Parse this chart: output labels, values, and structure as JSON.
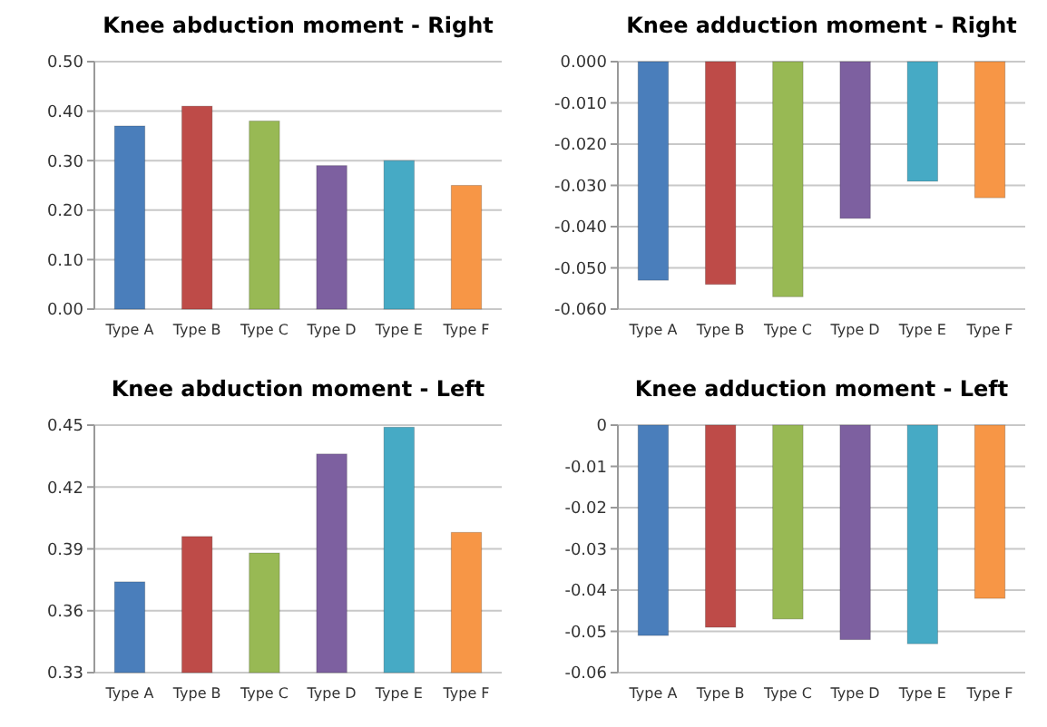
{
  "chart_data": [
    {
      "type": "bar",
      "title": "Knee abduction moment - Right",
      "categories": [
        "Type A",
        "Type B",
        "Type C",
        "Type D",
        "Type E",
        "Type F"
      ],
      "values": [
        0.37,
        0.41,
        0.38,
        0.29,
        0.3,
        0.25
      ],
      "colors": [
        "#4a7ebb",
        "#be4b48",
        "#98b954",
        "#7d60a0",
        "#46aac5",
        "#f79646"
      ],
      "ylim": [
        0,
        0.5
      ],
      "yticks": [
        {
          "value": 0,
          "label": "0.00"
        },
        {
          "value": 0.1,
          "label": "0.10"
        },
        {
          "value": 0.2,
          "label": "0.20"
        },
        {
          "value": 0.3,
          "label": "0.30"
        },
        {
          "value": 0.4,
          "label": "0.40"
        },
        {
          "value": 0.5,
          "label": "0.50"
        }
      ],
      "grid": "y"
    },
    {
      "type": "bar",
      "title": "Knee adduction moment - Right",
      "categories": [
        "Type A",
        "Type B",
        "Type C",
        "Type D",
        "Type E",
        "Type F"
      ],
      "values": [
        -0.053,
        -0.054,
        -0.057,
        -0.038,
        -0.029,
        -0.033
      ],
      "colors": [
        "#4a7ebb",
        "#be4b48",
        "#98b954",
        "#7d60a0",
        "#46aac5",
        "#f79646"
      ],
      "ylim": [
        -0.06,
        0
      ],
      "yticks": [
        {
          "value": -0.06,
          "label": "-0.060"
        },
        {
          "value": -0.05,
          "label": "-0.050"
        },
        {
          "value": -0.04,
          "label": "-0.040"
        },
        {
          "value": -0.03,
          "label": "-0.030"
        },
        {
          "value": -0.02,
          "label": "-0.020"
        },
        {
          "value": -0.01,
          "label": "-0.010"
        },
        {
          "value": 0,
          "label": "0.000"
        }
      ],
      "grid": "y"
    },
    {
      "type": "bar",
      "title": "Knee abduction moment - Left",
      "categories": [
        "Type A",
        "Type B",
        "Type C",
        "Type D",
        "Type E",
        "Type F"
      ],
      "values": [
        0.374,
        0.396,
        0.388,
        0.436,
        0.449,
        0.398
      ],
      "colors": [
        "#4a7ebb",
        "#be4b48",
        "#98b954",
        "#7d60a0",
        "#46aac5",
        "#f79646"
      ],
      "ylim": [
        0.33,
        0.45
      ],
      "yticks": [
        0.33,
        0.36,
        0.39,
        0.42,
        0.45
      ],
      "grid": "y"
    },
    {
      "type": "bar",
      "title": "Knee adduction moment - Left",
      "categories": [
        "Type A",
        "Type B",
        "Type C",
        "Type D",
        "Type E",
        "Type F"
      ],
      "values": [
        -0.051,
        -0.049,
        -0.047,
        -0.052,
        -0.053,
        -0.042
      ],
      "colors": [
        "#4a7ebb",
        "#be4b48",
        "#98b954",
        "#7d60a0",
        "#46aac5",
        "#f79646"
      ],
      "ylim": [
        -0.06,
        0
      ],
      "yticks": [
        -0.06,
        -0.05,
        -0.04,
        -0.03,
        -0.02,
        -0.01,
        0
      ],
      "grid": "y"
    }
  ]
}
